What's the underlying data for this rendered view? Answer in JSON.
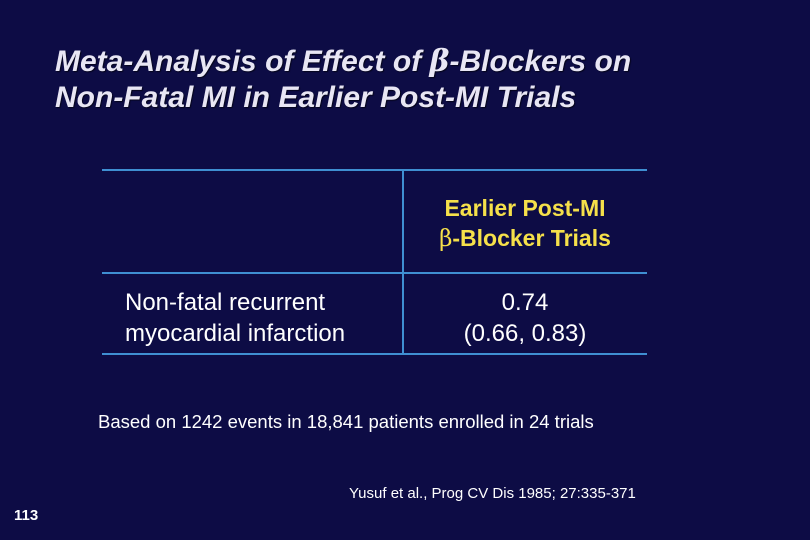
{
  "slide": {
    "title_line1_prefix": "Meta-Analysis of Effect of ",
    "title_beta": "β",
    "title_line1_suffix": "-Blockers on",
    "title_line2": "Non-Fatal MI in Earlier Post-MI Trials"
  },
  "table": {
    "column_header_line1": "Earlier Post-MI",
    "column_header_beta": "β",
    "column_header_line2_suffix": "-Blocker Trials",
    "row_label_line1": "Non-fatal recurrent",
    "row_label_line2": "myocardial infarction",
    "row_value": "0.74",
    "row_ci": "(0.66, 0.83)"
  },
  "footnote": "Based on 1242 events in 18,841 patients enrolled in 24 trials",
  "citation": "Yusuf et al., Prog CV Dis 1985; 27:335-371",
  "page_number": "113",
  "colors": {
    "background": "#0d0c45",
    "table_lines": "#3f8fd2",
    "header_text": "#f5e04a"
  }
}
